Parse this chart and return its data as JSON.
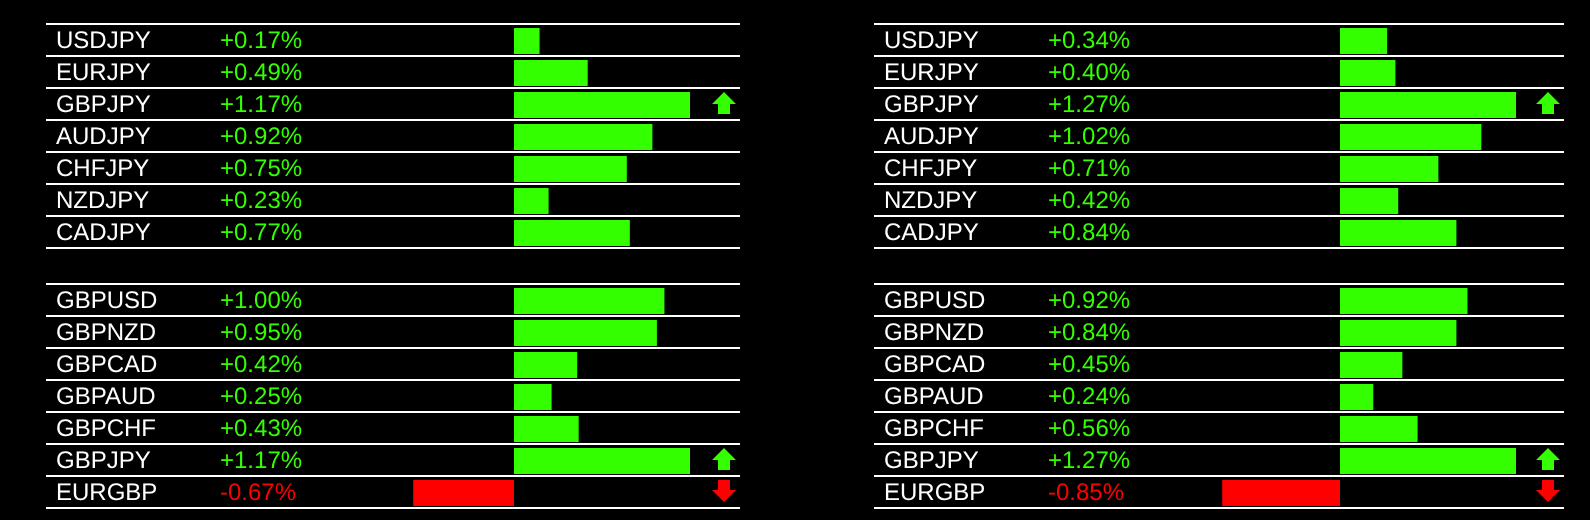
{
  "chart_data": [
    {
      "type": "bar",
      "orientation": "horizontal",
      "categories": [
        "USDJPY",
        "EURJPY",
        "GBPJPY",
        "AUDJPY",
        "CHFJPY",
        "NZDJPY",
        "CADJPY"
      ],
      "values": [
        0.17,
        0.49,
        1.17,
        0.92,
        0.75,
        0.23,
        0.77
      ],
      "value_labels": [
        "+0.17%",
        "+0.49%",
        "+1.17%",
        "+0.92%",
        "+0.75%",
        "+0.23%",
        "+0.77%"
      ],
      "colors": [
        "#33ff00",
        "#33ff00",
        "#33ff00",
        "#33ff00",
        "#33ff00",
        "#33ff00",
        "#33ff00"
      ],
      "grid": "y",
      "tick_labels": "y"
    },
    {
      "type": "bar",
      "orientation": "horizontal",
      "categories": [
        "USDJPY",
        "EURJPY",
        "GBPJPY",
        "AUDJPY",
        "CHFJPY",
        "NZDJPY",
        "CADJPY"
      ],
      "values": [
        0.34,
        0.4,
        1.27,
        1.02,
        0.71,
        0.42,
        0.84
      ],
      "value_labels": [
        "+0.34%",
        "+0.40%",
        "+1.27%",
        "+1.02%",
        "+0.71%",
        "+0.42%",
        "+0.84%"
      ],
      "colors": [
        "#33ff00",
        "#33ff00",
        "#33ff00",
        "#33ff00",
        "#33ff00",
        "#33ff00",
        "#33ff00"
      ],
      "grid": "y",
      "tick_labels": "y"
    },
    {
      "type": "bar",
      "orientation": "horizontal",
      "categories": [
        "GBPUSD",
        "GBPNZD",
        "GBPCAD",
        "GBPAUD",
        "GBPCHF",
        "GBPJPY",
        "EURGBP"
      ],
      "values": [
        1.0,
        0.95,
        0.42,
        0.25,
        0.43,
        1.17,
        -0.67
      ],
      "value_labels": [
        "+1.00%",
        "+0.95%",
        "+0.42%",
        "+0.25%",
        "+0.43%",
        "+1.17%",
        "-0.67%"
      ],
      "colors": [
        "#33ff00",
        "#33ff00",
        "#33ff00",
        "#33ff00",
        "#33ff00",
        "#33ff00",
        "#ff0000"
      ],
      "grid": "y",
      "tick_labels": "y"
    },
    {
      "type": "bar",
      "orientation": "horizontal",
      "categories": [
        "GBPUSD",
        "GBPNZD",
        "GBPCAD",
        "GBPAUD",
        "GBPCHF",
        "GBPJPY",
        "EURGBP"
      ],
      "values": [
        0.92,
        0.84,
        0.45,
        0.24,
        0.56,
        1.27,
        -0.85
      ],
      "value_labels": [
        "+0.92%",
        "+0.84%",
        "+0.45%",
        "+0.24%",
        "+0.56%",
        "+1.27%",
        "-0.85%"
      ],
      "colors": [
        "#33ff00",
        "#33ff00",
        "#33ff00",
        "#33ff00",
        "#33ff00",
        "#33ff00",
        "#ff0000"
      ],
      "grid": "y",
      "tick_labels": "y"
    }
  ]
}
